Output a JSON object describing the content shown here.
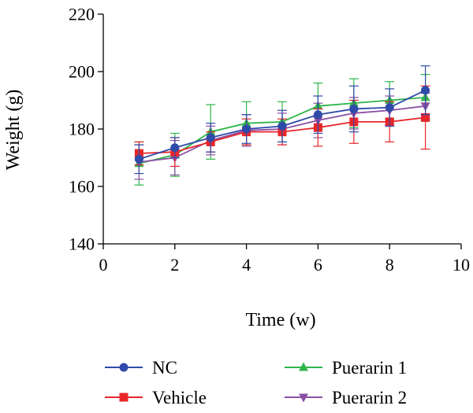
{
  "chart_data": {
    "type": "line",
    "xlabel": "Time (w)",
    "ylabel": "Weight (g)",
    "xlim": [
      0,
      10
    ],
    "ylim": [
      140,
      220
    ],
    "x_ticks": [
      0,
      2,
      4,
      6,
      8,
      10
    ],
    "y_ticks": [
      140,
      160,
      180,
      200,
      220
    ],
    "x_tick_labels": [
      "0",
      "2",
      "4",
      "6",
      "8",
      "10"
    ],
    "y_tick_labels": [
      "140",
      "160",
      "180",
      "200",
      "220"
    ],
    "grid": false,
    "legend_position": "bottom",
    "x": [
      1,
      2,
      3,
      4,
      5,
      6,
      7,
      8,
      9
    ],
    "series": [
      {
        "name": "Puerarin 1",
        "color": "#2fb54a",
        "marker": "triangle-up",
        "values": [
          168,
          171,
          179,
          182,
          182.5,
          188,
          189,
          190,
          191
        ],
        "error": [
          7.5,
          7.5,
          9.5,
          7.5,
          7,
          8,
          8.5,
          6.5,
          8
        ]
      },
      {
        "name": "Puerarin 2",
        "color": "#8b4fa3",
        "marker": "triangle-down",
        "values": [
          168.5,
          170,
          176,
          179.5,
          180,
          183,
          185.5,
          186.5,
          188
        ],
        "error": [
          6,
          6,
          5,
          5.5,
          5.5,
          6,
          5.5,
          5,
          4.5
        ]
      },
      {
        "name": "Vehicle",
        "color": "#e8262a",
        "marker": "square",
        "values": [
          171.5,
          172,
          175.5,
          179,
          179,
          180.5,
          182.5,
          182.5,
          184
        ],
        "error": [
          4,
          5,
          3.5,
          4.5,
          4.5,
          6.5,
          7.5,
          7,
          11
        ]
      },
      {
        "name": "NC",
        "color": "#2f4aa8",
        "marker": "circle",
        "values": [
          169.5,
          173.5,
          177,
          180,
          181,
          185,
          187,
          187.5,
          193.5
        ],
        "error": [
          5,
          3.5,
          5,
          5,
          5.5,
          6.5,
          8,
          6.5,
          8.5
        ]
      }
    ],
    "legend": [
      {
        "name": "NC",
        "color": "#2f4aa8",
        "marker": "circle"
      },
      {
        "name": "Puerarin 1",
        "color": "#2fb54a",
        "marker": "triangle-up"
      },
      {
        "name": "Vehicle",
        "color": "#e8262a",
        "marker": "square"
      },
      {
        "name": "Puerarin 2",
        "color": "#8b4fa3",
        "marker": "triangle-down"
      }
    ]
  }
}
